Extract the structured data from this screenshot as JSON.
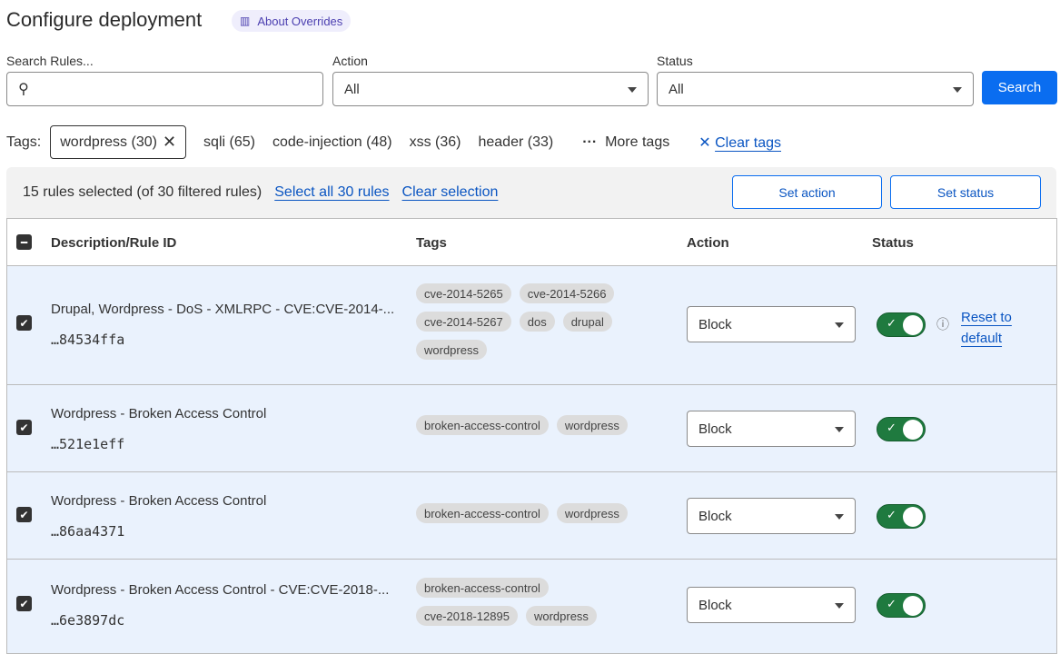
{
  "header": {
    "title": "Configure deployment",
    "about": "About Overrides"
  },
  "filters": {
    "search_label": "Search Rules...",
    "search_value": "",
    "action_label": "Action",
    "action_value": "All",
    "status_label": "Status",
    "status_value": "All",
    "search_button": "Search"
  },
  "tags": {
    "label": "Tags:",
    "selected": "wordpress (30)",
    "options": [
      "sqli (65)",
      "code-injection (48)",
      "xss (36)",
      "header (33)"
    ],
    "more": "More tags",
    "clear": "Clear tags"
  },
  "bulk": {
    "summary": "15 rules selected (of 30 filtered rules)",
    "select_all": "Select all 30 rules",
    "clear_selection": "Clear selection",
    "set_action": "Set action",
    "set_status": "Set status"
  },
  "table": {
    "headers": {
      "desc": "Description/Rule ID",
      "tags": "Tags",
      "action": "Action",
      "status": "Status"
    },
    "rows": [
      {
        "desc": "Drupal, Wordpress - DoS - XMLRPC - CVE:CVE-2014-...",
        "id": "…84534ffa",
        "tags": [
          "cve-2014-5265",
          "cve-2014-5266",
          "cve-2014-5267",
          "dos",
          "drupal",
          "wordpress"
        ],
        "action": "Block",
        "enabled": true,
        "reset": "Reset to default"
      },
      {
        "desc": "Wordpress - Broken Access Control",
        "id": "…521e1eff",
        "tags": [
          "broken-access-control",
          "wordpress"
        ],
        "action": "Block",
        "enabled": true
      },
      {
        "desc": "Wordpress - Broken Access Control",
        "id": "…86aa4371",
        "tags": [
          "broken-access-control",
          "wordpress"
        ],
        "action": "Block",
        "enabled": true
      },
      {
        "desc": "Wordpress - Broken Access Control - CVE:CVE-2018-...",
        "id": "…6e3897dc",
        "tags": [
          "broken-access-control",
          "cve-2018-12895",
          "wordpress"
        ],
        "action": "Block",
        "enabled": true
      }
    ]
  },
  "colors": {
    "primary": "#0a6df0",
    "toggle_on": "#1f7a3f",
    "row_selected": "#eaf2fd"
  }
}
